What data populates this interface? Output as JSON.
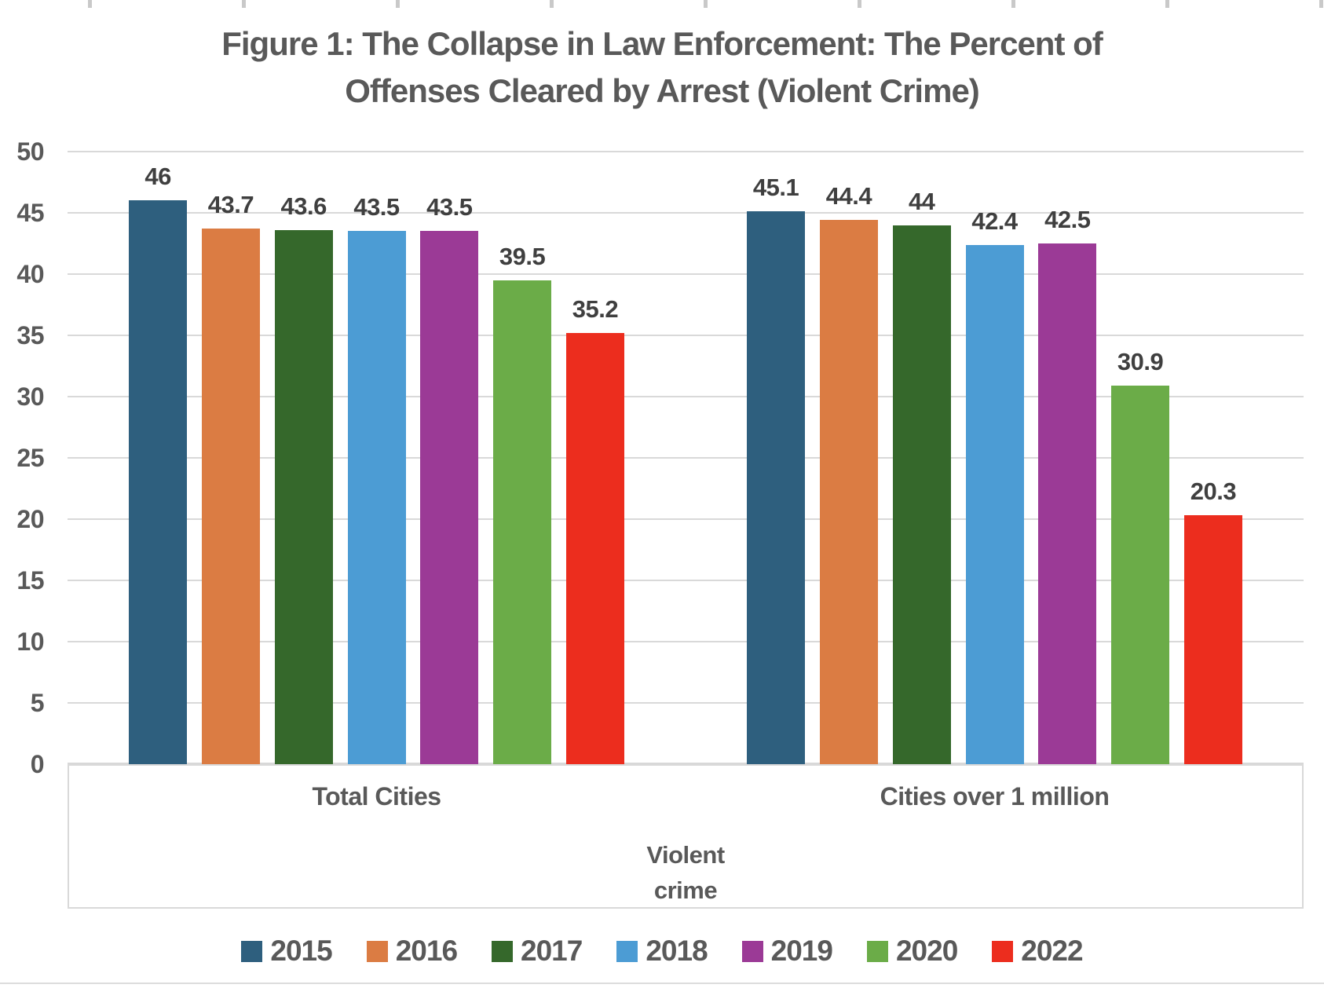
{
  "figure": {
    "title": "Figure 1: The Collapse in Law Enforcement: The Percent of\nOffenses Cleared by Arrest (Violent Crime)"
  },
  "chart_data": {
    "type": "bar",
    "title": "Figure 1: The Collapse in Law Enforcement: The Percent of Offenses Cleared by Arrest (Violent Crime)",
    "categories": [
      "Total Cities",
      "Cities over 1 million"
    ],
    "xlabel": "Violent crime",
    "ylabel": "",
    "ylim": [
      0,
      50
    ],
    "yticks": [
      0,
      5,
      10,
      15,
      20,
      25,
      30,
      35,
      40,
      45,
      50
    ],
    "grid": true,
    "data_labels": true,
    "legend_position": "bottom",
    "series": [
      {
        "name": "2015",
        "color": "#2E5F7E",
        "values": [
          46,
          45.1
        ]
      },
      {
        "name": "2016",
        "color": "#DB7C43",
        "values": [
          43.7,
          44.4
        ]
      },
      {
        "name": "2017",
        "color": "#35682B",
        "values": [
          43.6,
          44
        ]
      },
      {
        "name": "2018",
        "color": "#4C9CD4",
        "values": [
          43.5,
          42.4
        ]
      },
      {
        "name": "2019",
        "color": "#9B3A96",
        "values": [
          43.5,
          42.5
        ]
      },
      {
        "name": "2020",
        "color": "#6BAC48",
        "values": [
          39.5,
          30.9
        ]
      },
      {
        "name": "2022",
        "color": "#EC2D1E",
        "values": [
          35.2,
          20.3
        ]
      }
    ]
  }
}
